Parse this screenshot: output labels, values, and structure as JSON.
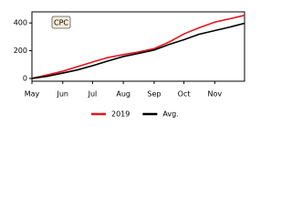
{
  "chart_data": {
    "type": "line",
    "annotation": "CPC",
    "x": [
      0,
      15,
      31,
      46,
      61,
      76,
      92,
      107,
      123,
      138,
      153,
      168,
      184,
      199,
      214
    ],
    "series": [
      {
        "name": "2019",
        "color": "#e8141c",
        "values": [
          0,
          25,
          52,
          85,
          118,
          150,
          172,
          190,
          215,
          262,
          321,
          365,
          406,
          430,
          455
        ]
      },
      {
        "name": "Avg.",
        "color": "#000000",
        "values": [
          0,
          15,
          39,
          62,
          92,
          125,
          158,
          180,
          205,
          245,
          279,
          318,
          345,
          370,
          398
        ]
      }
    ],
    "xlim": [
      0,
      214
    ],
    "xticks": [
      {
        "value": 0,
        "label": "May"
      },
      {
        "value": 31,
        "label": "Jun"
      },
      {
        "value": 61,
        "label": "Jul"
      },
      {
        "value": 92,
        "label": "Aug"
      },
      {
        "value": 123,
        "label": "Sep"
      },
      {
        "value": 153,
        "label": "Oct"
      },
      {
        "value": 184,
        "label": "Nov"
      }
    ],
    "ylim": [
      -20,
      480
    ],
    "yticks": [
      0,
      200,
      400
    ],
    "legend": "bottom"
  }
}
